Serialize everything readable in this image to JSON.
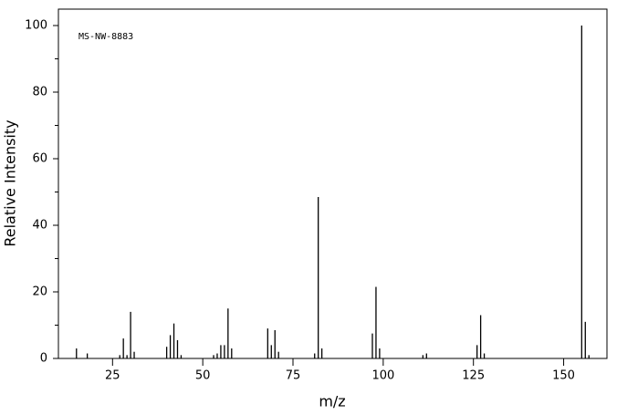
{
  "chart_data": {
    "type": "stem",
    "annotation": "MS-NW-8883",
    "xlabel": "m/z",
    "ylabel": "Relative Intensity",
    "x": [
      15,
      18,
      27,
      28,
      29,
      30,
      31,
      40,
      41,
      42,
      43,
      44,
      53,
      54,
      55,
      56,
      57,
      58,
      68,
      69,
      70,
      71,
      81,
      82,
      83,
      97,
      98,
      99,
      111,
      112,
      126,
      127,
      128,
      155,
      156,
      157
    ],
    "values": [
      3,
      1.5,
      1,
      6,
      1,
      14,
      2,
      3.5,
      7,
      10.5,
      5.5,
      1,
      1,
      1.5,
      4,
      4,
      15,
      3,
      9,
      4,
      8.5,
      2,
      1.5,
      48.5,
      3,
      7.5,
      21.5,
      3,
      1,
      1.5,
      4,
      13,
      1.5,
      100,
      11,
      1
    ],
    "color": "#000000",
    "xlim": [
      10,
      162
    ],
    "ylim": [
      0,
      100
    ],
    "xticks": [
      25,
      50,
      75,
      100,
      125,
      150
    ],
    "yticks": [
      0,
      20,
      40,
      60,
      80,
      100
    ],
    "yminorticks": [
      10,
      30,
      50,
      70,
      90
    ]
  }
}
